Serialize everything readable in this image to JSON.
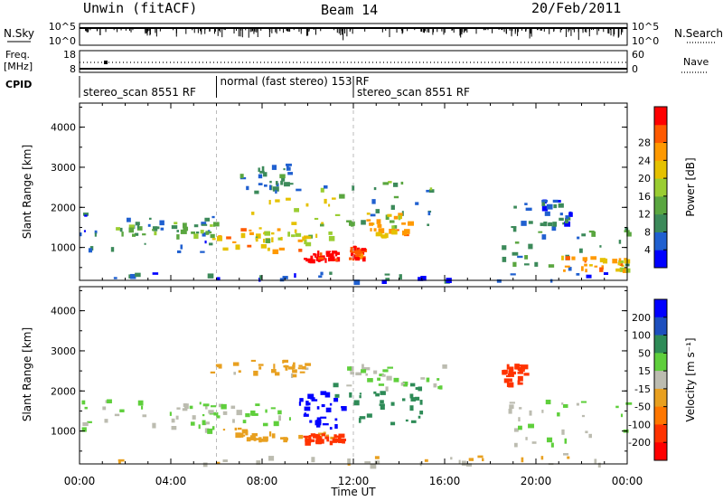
{
  "header": {
    "title": "Unwin (fitACF)",
    "beam": "Beam 14",
    "date": "20/Feb/2011"
  },
  "status_panels": {
    "noise": {
      "left_label": "N.Sky",
      "left_ticks": [
        "10^5",
        "10^0"
      ],
      "right_ticks": [
        "10^5",
        "10^0"
      ],
      "right_label": "N.Search"
    },
    "freq": {
      "left_label_1": "Freq.",
      "left_label_2": "[MHz]",
      "left_ticks": [
        "18",
        "8"
      ],
      "right_ticks": [
        "60",
        "0"
      ],
      "right_label": "Nave"
    },
    "cpid": {
      "label": "CPID",
      "segments": [
        {
          "start": 0,
          "end": 6,
          "text": "stereo_scan 8551 RF"
        },
        {
          "start": 6,
          "end": 12,
          "text": "normal (fast stereo) 153 RF"
        },
        {
          "start": 12,
          "end": 24,
          "text": "stereo_scan 8551 RF"
        }
      ]
    }
  },
  "chart_data": [
    {
      "type": "heatmap",
      "name": "power",
      "quantity": "Power",
      "xlabel": "",
      "ylabel": "Slant Range [km]",
      "xlim": [
        0,
        24
      ],
      "ylim": [
        180,
        4600
      ],
      "yticks": [
        "1000",
        "2000",
        "3000",
        "4000"
      ],
      "colorbar": {
        "label": "Power [dB]",
        "ticks": [
          "4",
          "8",
          "12",
          "16",
          "20",
          "24",
          "28"
        ],
        "range": [
          0,
          30
        ],
        "colors": [
          "#0000ff",
          "#2060d0",
          "#3c8a5a",
          "#5aa640",
          "#9acd32",
          "#e5c100",
          "#ff9900",
          "#ff5a00",
          "#ff0000"
        ]
      },
      "regions": [
        {
          "t0": 0.0,
          "t1": 6.0,
          "r0": 900,
          "r1": 1900,
          "value": 6
        },
        {
          "t0": 1.5,
          "t1": 6.0,
          "r0": 1300,
          "r1": 1650,
          "value": 12
        },
        {
          "t0": 5.8,
          "t1": 10.2,
          "r0": 950,
          "r1": 1500,
          "value": 20
        },
        {
          "t0": 7.5,
          "t1": 11.2,
          "r0": 1200,
          "r1": 2300,
          "value": 16
        },
        {
          "t0": 9.8,
          "t1": 11.3,
          "r0": 700,
          "r1": 950,
          "value": 28
        },
        {
          "t0": 11.8,
          "t1": 12.4,
          "r0": 750,
          "r1": 1050,
          "value": 26
        },
        {
          "t0": 10.5,
          "t1": 15.5,
          "r0": 1500,
          "r1": 2700,
          "value": 10
        },
        {
          "t0": 12.5,
          "t1": 14.5,
          "r0": 1300,
          "r1": 1900,
          "value": 20
        },
        {
          "t0": 7.0,
          "t1": 9.5,
          "r0": 2400,
          "r1": 3100,
          "value": 8
        },
        {
          "t0": 18.5,
          "t1": 24.0,
          "r0": 500,
          "r1": 1700,
          "value": 8
        },
        {
          "t0": 21.0,
          "t1": 24.0,
          "r0": 450,
          "r1": 800,
          "value": 20
        },
        {
          "t0": 19.0,
          "t1": 21.5,
          "r0": 1600,
          "r1": 2200,
          "value": 6
        },
        {
          "t0": 0.0,
          "t1": 24.0,
          "r0": 180,
          "r1": 400,
          "value": 5
        }
      ]
    },
    {
      "type": "heatmap",
      "name": "velocity",
      "quantity": "Velocity",
      "xlabel": "Time UT",
      "ylabel": "Slant Range [km]",
      "xlim": [
        0,
        24
      ],
      "ylim": [
        180,
        4600
      ],
      "yticks": [
        "1000",
        "2000",
        "3000",
        "4000"
      ],
      "xticks": [
        "00:00",
        "04:00",
        "08:00",
        "12:00",
        "16:00",
        "20:00",
        "00:00"
      ],
      "colorbar": {
        "label": "Velocity [m s⁻¹]",
        "ticks": [
          "200",
          "100",
          "50",
          "15",
          "-15",
          "-50",
          "-100",
          "-200"
        ],
        "colors": [
          "#0000ff",
          "#1d4fbe",
          "#2e8b57",
          "#5fcf3c",
          "#bcbcb0",
          "#e8a020",
          "#ff7700",
          "#ff3300",
          "#ff0000"
        ]
      },
      "regions": [
        {
          "t0": 0.0,
          "t1": 6.0,
          "r0": 1000,
          "r1": 1800,
          "value": 0
        },
        {
          "t0": 4.0,
          "t1": 9.5,
          "r0": 1200,
          "r1": 1700,
          "value": 0
        },
        {
          "t0": 5.5,
          "t1": 10.0,
          "r0": 2400,
          "r1": 2800,
          "value": -40
        },
        {
          "t0": 6.0,
          "t1": 11.0,
          "r0": 800,
          "r1": 1100,
          "value": -60
        },
        {
          "t0": 9.8,
          "t1": 11.5,
          "r0": 750,
          "r1": 950,
          "value": -180
        },
        {
          "t0": 9.5,
          "t1": 11.5,
          "r0": 1100,
          "r1": 2000,
          "value": 180
        },
        {
          "t0": 11.0,
          "t1": 15.0,
          "r0": 1200,
          "r1": 2300,
          "value": 60
        },
        {
          "t0": 11.5,
          "t1": 16.0,
          "r0": 2100,
          "r1": 2700,
          "value": 0
        },
        {
          "t0": 18.5,
          "t1": 24.0,
          "r0": 700,
          "r1": 1800,
          "value": 0
        },
        {
          "t0": 18.5,
          "t1": 19.5,
          "r0": 2200,
          "r1": 2700,
          "value": -180
        },
        {
          "t0": 0.0,
          "t1": 24.0,
          "r0": 180,
          "r1": 450,
          "value": -30
        }
      ]
    }
  ]
}
